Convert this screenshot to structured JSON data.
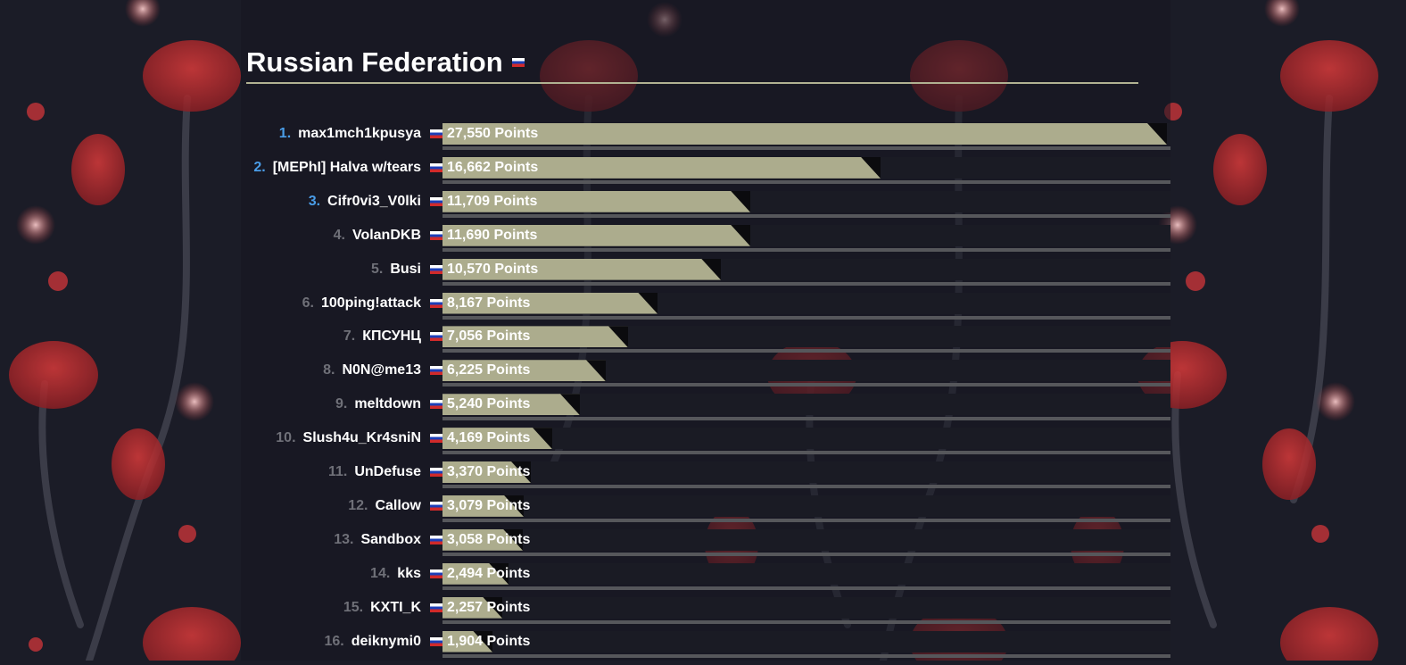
{
  "page": {
    "title": "Russian Federation",
    "flag_icon": "russia-flag-icon"
  },
  "points_suffix": " Points",
  "max_points": 27550,
  "colors": {
    "background": "#1b1c27",
    "bar": "#acac8d",
    "rank_top": "#4a9de8",
    "rank_rest": "#6f7078",
    "rule": "#b1b292"
  },
  "leaderboard": [
    {
      "rank": "1.",
      "team": "max1mch1kpusya",
      "points": 27550,
      "points_text": "27,550 Points",
      "top": true
    },
    {
      "rank": "2.",
      "team": "[MEPhI] Halva w/tears",
      "points": 16662,
      "points_text": "16,662 Points",
      "top": true
    },
    {
      "rank": "3.",
      "team": "Cifr0vi3_V0lki",
      "points": 11709,
      "points_text": "11,709 Points",
      "top": true
    },
    {
      "rank": "4.",
      "team": "VolanDKB",
      "points": 11690,
      "points_text": "11,690 Points",
      "top": false
    },
    {
      "rank": "5.",
      "team": "Busi",
      "points": 10570,
      "points_text": "10,570 Points",
      "top": false
    },
    {
      "rank": "6.",
      "team": "100ping!attack",
      "points": 8167,
      "points_text": "8,167 Points",
      "top": false
    },
    {
      "rank": "7.",
      "team": "КПСУНЦ",
      "points": 7056,
      "points_text": "7,056 Points",
      "top": false
    },
    {
      "rank": "8.",
      "team": "N0N@me13",
      "points": 6225,
      "points_text": "6,225 Points",
      "top": false
    },
    {
      "rank": "9.",
      "team": "meltdown",
      "points": 5240,
      "points_text": "5,240 Points",
      "top": false
    },
    {
      "rank": "10.",
      "team": "Slush4u_Kr4sniN",
      "points": 4169,
      "points_text": "4,169 Points",
      "top": false
    },
    {
      "rank": "11.",
      "team": "UnDefuse",
      "points": 3370,
      "points_text": "3,370 Points",
      "top": false
    },
    {
      "rank": "12.",
      "team": "Callow",
      "points": 3079,
      "points_text": "3,079 Points",
      "top": false
    },
    {
      "rank": "13.",
      "team": "Sandbox",
      "points": 3058,
      "points_text": "3,058 Points",
      "top": false
    },
    {
      "rank": "14.",
      "team": "kks",
      "points": 2494,
      "points_text": "2,494 Points",
      "top": false
    },
    {
      "rank": "15.",
      "team": "KXTI_K",
      "points": 2257,
      "points_text": "2,257 Points",
      "top": false
    },
    {
      "rank": "16.",
      "team": "deiknymi0",
      "points": 1904,
      "points_text": "1,904 Points",
      "top": false
    }
  ]
}
